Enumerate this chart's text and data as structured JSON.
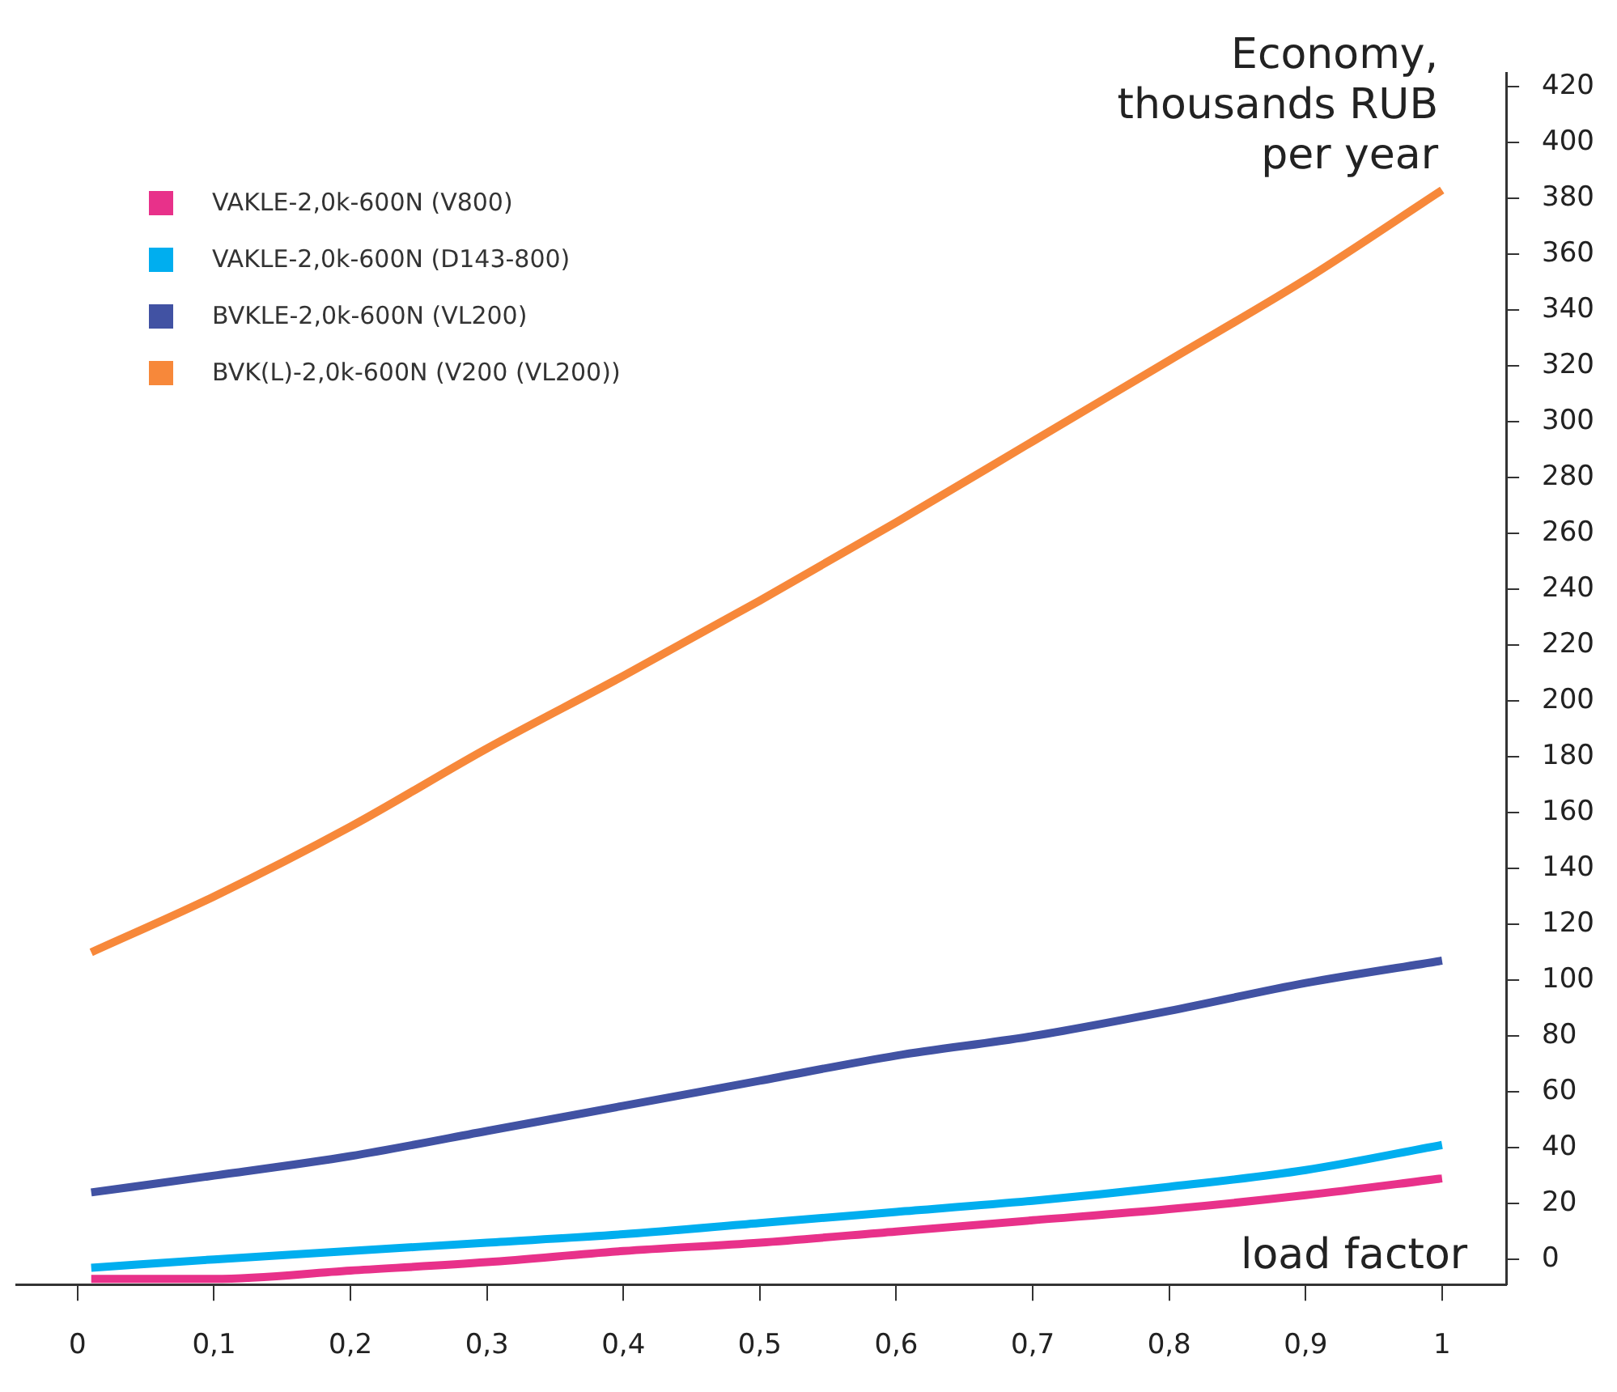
{
  "chart_data": {
    "type": "line",
    "xlabel": "load factor",
    "ylabel": "Economy, thousands RUB per year",
    "x": [
      0.01,
      0.1,
      0.2,
      0.3,
      0.4,
      0.5,
      0.6,
      0.7,
      0.8,
      0.9,
      1.0
    ],
    "series": [
      {
        "name": "VAKLE-2,0k-600N (V800)",
        "color": "#e8318a",
        "values": [
          -7,
          -7,
          -4,
          -1,
          3,
          6,
          10,
          14,
          18,
          23,
          29
        ]
      },
      {
        "name": "VAKLE-2,0k-600N (D143-800)",
        "color": "#00aeef",
        "values": [
          -3,
          0,
          3,
          6,
          9,
          13,
          17,
          21,
          26,
          32,
          41
        ]
      },
      {
        "name": "BVKLE-2,0k-600N (VL200)",
        "color": "#4152a3",
        "values": [
          24,
          30,
          37,
          46,
          55,
          64,
          73,
          80,
          89,
          99,
          107
        ]
      },
      {
        "name": "BVK(L)-2,0k-600N (V200 (VL200))",
        "color": "#f7883a",
        "values": [
          110,
          130,
          155,
          183,
          209,
          236,
          264,
          293,
          322,
          351,
          383
        ]
      }
    ],
    "xlim": [
      -0.045,
      1.047
    ],
    "ylim": [
      -9,
      425
    ],
    "xticks": [
      0,
      {
        "value": 0.1,
        "label": "0,1"
      },
      {
        "value": 0.2,
        "label": "0,2"
      },
      {
        "value": 0.3,
        "label": "0,3"
      },
      {
        "value": 0.4,
        "label": "0,4"
      },
      {
        "value": 0.5,
        "label": "0,5"
      },
      {
        "value": 0.6,
        "label": "0,6"
      },
      {
        "value": 0.7,
        "label": "0,7"
      },
      {
        "value": 0.8,
        "label": "0,8"
      },
      {
        "value": 0.9,
        "label": "0,9"
      },
      1
    ],
    "yticks": [
      0,
      20,
      40,
      60,
      80,
      100,
      120,
      140,
      160,
      180,
      200,
      220,
      240,
      260,
      280,
      300,
      320,
      340,
      360,
      380,
      400,
      420
    ],
    "grid": false,
    "legend": "top left",
    "marker": "none",
    "line_style": "solid"
  }
}
